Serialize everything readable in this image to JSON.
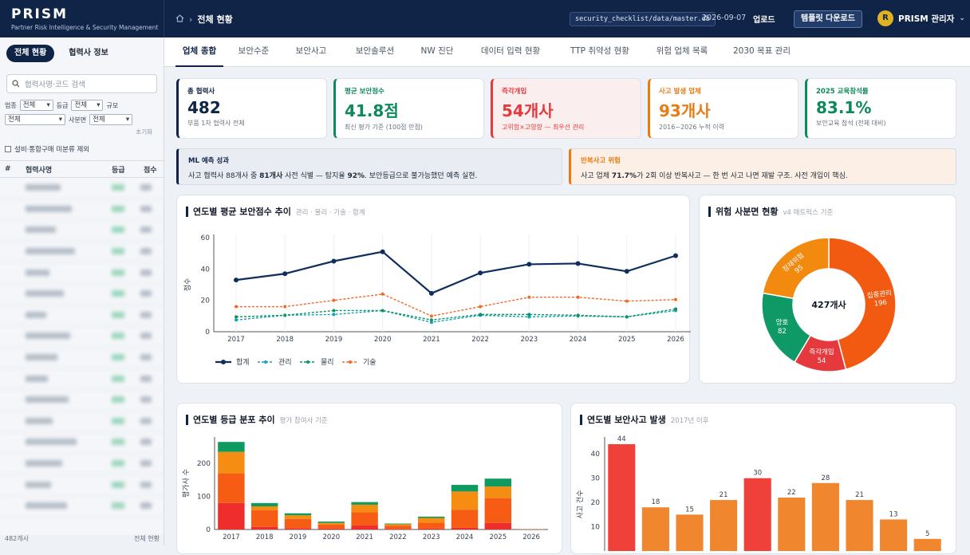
{
  "header": {
    "brand": "PRISM",
    "brand_sub": "Partner Risk Intelligence & Security Management",
    "home_icon": "home-icon",
    "breadcrumb_sep": "›",
    "breadcrumb_current": "전체 현황",
    "db_path": "security_checklist/data/master.db",
    "date": "2026-09-07",
    "upload_label": "업로드",
    "template_label": "템플릿 다운로드",
    "avatar_initial": "R",
    "user_name": "PRISM 관리자",
    "user_caret": "⌄"
  },
  "sidebar": {
    "tabs": [
      "전체 현황",
      "협력사 정보"
    ],
    "search_placeholder": "협력사명·코드 검색",
    "filter_labels": [
      "업종",
      "등급",
      "규모",
      "사분면"
    ],
    "filter_values": [
      "전체",
      "전체",
      "전체",
      "전체"
    ],
    "reset": "초기화",
    "checkbox_label": "설비·통합구매 미분류 제외",
    "columns": [
      "#",
      "협력사명",
      "등급",
      "점수"
    ],
    "footer_count": "482개사",
    "footer_right": "전체 현황"
  },
  "tabs": [
    "업체 종합",
    "보안수준",
    "보안사고",
    "보안솔루션",
    "NW 진단",
    "데이터 입력 현황",
    "TTP 취약성 현황",
    "위험 업체 목록",
    "2030 목표 관리"
  ],
  "kpis": [
    {
      "label": "총 협력사",
      "value": "482",
      "note": "부품 1차 협력사 전체",
      "color": "#0f2447"
    },
    {
      "label": "평균 보안점수",
      "value": "41.8점",
      "note": "최신 평가 기준 (100점 만점)",
      "color": "#0d8a5a"
    },
    {
      "label": "즉각개입",
      "value": "54개사",
      "note": "고위험×고영향 — 최우선 관리",
      "color": "#e5393d"
    },
    {
      "label": "사고 발생 업체",
      "value": "93개사",
      "note": "2016~2026 누적 이력",
      "color": "#ea7b12"
    },
    {
      "label": "2025 교육참석률",
      "value": "83.1%",
      "note": "보안교육 참석 (전체 대비)",
      "color": "#0d8a5a"
    }
  ],
  "info": {
    "ml_title": "ML 예측 성과",
    "ml_parts": [
      "사고 협력사 88개사 중 ",
      "81개사",
      " 사전 식별 — 탐지율 ",
      "92%",
      ". 보안등급으로 불가능했던 예측 실현."
    ],
    "repeat_title": "반복사고 위험",
    "repeat_parts": [
      "사고 업체 ",
      "71.7%",
      "가 2회 이상 반복사고 — 한 번 사고 나면 재발 구조. 사전 개입이 핵심."
    ]
  },
  "line_card": {
    "title": "연도별 평균 보안점수 추이",
    "subtitle": "관리 · 물리 · 기술 · 합계",
    "ylabel": "점수"
  },
  "donut_card": {
    "title": "위험 사분면 현황",
    "subtitle": "v4 매트릭스 기준",
    "center": "427개사"
  },
  "grade_card": {
    "title": "연도별 등급 분포 추이",
    "subtitle": "평가 참여사 기준",
    "ylabel": "평가사 수"
  },
  "incident_card": {
    "title": "연도별 보안사고 발생",
    "subtitle": "2017년 이후",
    "ylabel": "사고 건수"
  },
  "chart_data": [
    {
      "type": "line",
      "x": [
        2017,
        2018,
        2019,
        2020,
        2021,
        2022,
        2023,
        2024,
        2025,
        2026
      ],
      "ylim": [
        0,
        60
      ],
      "yticks": [
        0,
        20,
        40,
        60
      ],
      "ylabel": "점수",
      "legend": "bottom-left",
      "series": [
        {
          "name": "합계",
          "color": "#0f2e5e",
          "values": [
            33,
            37,
            45,
            51,
            24.5,
            37.5,
            43,
            43.5,
            38.5,
            48.5
          ]
        },
        {
          "name": "관리",
          "color": "#17a2b8",
          "values": [
            7.5,
            10.5,
            11,
            13.5,
            6,
            10.5,
            9.5,
            10,
            9.5,
            13.5
          ]
        },
        {
          "name": "물리",
          "color": "#0d9460",
          "values": [
            9.5,
            10.5,
            13.5,
            13.5,
            7.5,
            11,
            11,
            10.5,
            9.5,
            14.5
          ]
        },
        {
          "name": "기술",
          "color": "#f06a2a",
          "values": [
            16,
            16,
            20,
            24,
            10,
            16,
            22,
            22,
            19.5,
            20.5
          ]
        }
      ]
    },
    {
      "type": "pie",
      "labels": [
        "집중관리",
        "즉각개입",
        "양호",
        "잠재위험"
      ],
      "values": [
        196,
        54,
        82,
        95
      ],
      "colors": [
        "#f25a12",
        "#e5393d",
        "#0e9966",
        "#f28a10"
      ],
      "center": "427개사"
    },
    {
      "type": "bar",
      "stacked": true,
      "categories": [
        "2017",
        "2018",
        "2019",
        "2020",
        "2021",
        "2022",
        "2023",
        "2024",
        "2025",
        "2026"
      ],
      "ylim": [
        0,
        280
      ],
      "yticks": [
        0,
        100,
        200
      ],
      "ylabel": "평가사 수",
      "series": [
        {
          "color": "#ef2d2d",
          "values": [
            80,
            8,
            4,
            3,
            12,
            2,
            3,
            5,
            20,
            0
          ]
        },
        {
          "color": "#f65c14",
          "values": [
            90,
            50,
            28,
            12,
            40,
            9,
            18,
            55,
            75,
            1
          ]
        },
        {
          "color": "#f58d12",
          "values": [
            65,
            12,
            11,
            5,
            23,
            5,
            14,
            55,
            35,
            0
          ]
        },
        {
          "color": "#0f9a60",
          "values": [
            30,
            10,
            6,
            4,
            8,
            2,
            4,
            20,
            24,
            0
          ]
        }
      ]
    },
    {
      "type": "bar",
      "categories": [
        "2017",
        "2018",
        "2019",
        "2020",
        "2021",
        "2022",
        "2023",
        "2024",
        "2025",
        "2026"
      ],
      "values": [
        44,
        18,
        15,
        21,
        30,
        22,
        28,
        21,
        13,
        5
      ],
      "labels": [
        "44",
        "18",
        "15",
        "21",
        "30",
        "22",
        "28",
        "21",
        "13",
        "5"
      ],
      "colors": [
        "#ef4139",
        "#f0862e",
        "#f0862e",
        "#f0862e",
        "#ef4139",
        "#f0862e",
        "#f0862e",
        "#f0862e",
        "#f0862e",
        "#f0862e"
      ],
      "ylim": [
        0,
        45
      ],
      "yticks": [
        10,
        20,
        30,
        40
      ],
      "ylabel": "사고 건수"
    }
  ]
}
